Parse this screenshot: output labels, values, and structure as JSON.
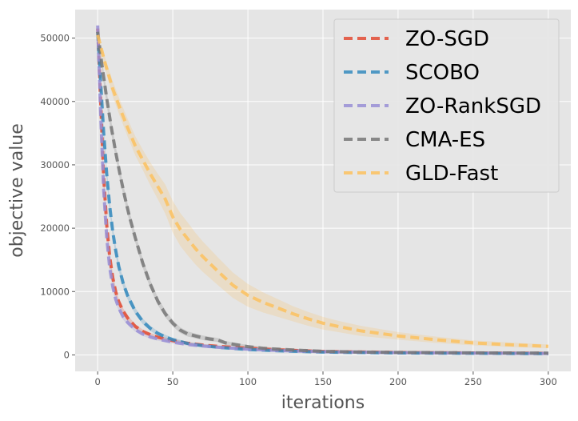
{
  "chart_data": {
    "type": "line",
    "title": "",
    "xlabel": "iterations",
    "ylabel": "objective value",
    "xlim": [
      -15,
      315
    ],
    "ylim": [
      -2600,
      54500
    ],
    "xticks": [
      0,
      50,
      100,
      150,
      200,
      250,
      300
    ],
    "yticks": [
      0,
      10000,
      20000,
      30000,
      40000,
      50000
    ],
    "grid": true,
    "legend_position": "top-right",
    "series": [
      {
        "name": "ZO-SGD",
        "color": "#E24A33",
        "x": [
          0,
          2,
          4,
          6,
          8,
          10,
          12,
          14,
          17,
          20,
          25,
          30,
          35,
          40,
          50,
          60,
          70,
          80,
          100,
          120,
          150,
          200,
          250,
          300
        ],
        "values": [
          51500,
          40000,
          28000,
          20500,
          15500,
          12200,
          10000,
          8400,
          6900,
          5800,
          4500,
          3700,
          3200,
          2800,
          2250,
          1850,
          1550,
          1350,
          1050,
          800,
          550,
          380,
          300,
          250
        ],
        "band": [
          0,
          600,
          1000,
          900,
          800,
          700,
          600,
          500,
          450,
          400,
          350,
          300,
          280,
          250,
          220,
          200,
          180,
          160,
          140,
          120,
          100,
          80,
          60,
          50
        ]
      },
      {
        "name": "SCOBO",
        "color": "#348ABD",
        "x": [
          0,
          2,
          4,
          6,
          8,
          10,
          12,
          14,
          17,
          20,
          25,
          30,
          35,
          40,
          45,
          50,
          60,
          70,
          80,
          100,
          120,
          150,
          200,
          250,
          300
        ],
        "values": [
          51000,
          43000,
          35000,
          28500,
          23500,
          19500,
          16500,
          14000,
          11300,
          9300,
          6900,
          5300,
          4200,
          3400,
          2850,
          2400,
          1800,
          1450,
          1200,
          850,
          650,
          450,
          300,
          250,
          200
        ],
        "band": [
          0,
          800,
          1100,
          1000,
          900,
          850,
          800,
          700,
          650,
          600,
          500,
          450,
          400,
          350,
          320,
          300,
          250,
          220,
          200,
          150,
          120,
          100,
          80,
          60,
          50
        ]
      },
      {
        "name": "ZO-RankSGD",
        "color": "#988ED5",
        "x": [
          0,
          2,
          4,
          6,
          8,
          10,
          12,
          14,
          17,
          20,
          25,
          30,
          35,
          40,
          50,
          60,
          70,
          80,
          100,
          120,
          150,
          200,
          250,
          300
        ],
        "values": [
          52000,
          38000,
          26000,
          18500,
          13800,
          10800,
          8800,
          7400,
          6000,
          5100,
          4000,
          3300,
          2850,
          2500,
          2000,
          1650,
          1400,
          1200,
          900,
          700,
          500,
          350,
          280,
          230
        ],
        "band": [
          0,
          600,
          900,
          800,
          700,
          600,
          550,
          500,
          450,
          400,
          350,
          300,
          270,
          250,
          220,
          200,
          180,
          160,
          140,
          120,
          100,
          80,
          60,
          50
        ]
      },
      {
        "name": "CMA-ES",
        "color": "#777777",
        "x": [
          0,
          3,
          6,
          9,
          12,
          15,
          18,
          21,
          25,
          30,
          35,
          40,
          45,
          50,
          55,
          60,
          65,
          70,
          75,
          80,
          85,
          90,
          100,
          110,
          120,
          130,
          150,
          175,
          200,
          250,
          300
        ],
        "values": [
          51000,
          45500,
          40500,
          36000,
          32000,
          28300,
          25000,
          22000,
          18500,
          14500,
          11200,
          8500,
          6500,
          5000,
          3900,
          3300,
          3000,
          2700,
          2500,
          2350,
          1900,
          1700,
          1300,
          1050,
          900,
          780,
          560,
          450,
          380,
          320,
          280
        ],
        "band": [
          0,
          900,
          1100,
          1000,
          950,
          900,
          850,
          800,
          750,
          700,
          650,
          600,
          550,
          500,
          450,
          400,
          380,
          360,
          340,
          320,
          300,
          280,
          260,
          240,
          220,
          200,
          180,
          150,
          120,
          100,
          80
        ]
      },
      {
        "name": "GLD-Fast",
        "color": "#FBC15E",
        "x": [
          0,
          5,
          10,
          15,
          20,
          25,
          30,
          35,
          40,
          45,
          50,
          55,
          60,
          65,
          70,
          80,
          90,
          100,
          110,
          120,
          130,
          140,
          150,
          160,
          175,
          200,
          225,
          250,
          275,
          300
        ],
        "values": [
          50500,
          46000,
          42000,
          38800,
          35800,
          33000,
          30800,
          28600,
          26600,
          24600,
          21800,
          19800,
          18300,
          16800,
          15500,
          13200,
          11000,
          9400,
          8300,
          7400,
          6500,
          5700,
          5000,
          4500,
          3800,
          3000,
          2400,
          1900,
          1600,
          1350
        ],
        "band": [
          0,
          900,
          1200,
          1300,
          1400,
          1500,
          1600,
          1800,
          2000,
          2300,
          2500,
          2600,
          2600,
          2500,
          2400,
          2200,
          2000,
          1800,
          1600,
          1400,
          1200,
          1100,
          1000,
          900,
          800,
          600,
          500,
          400,
          350,
          300
        ]
      }
    ]
  }
}
